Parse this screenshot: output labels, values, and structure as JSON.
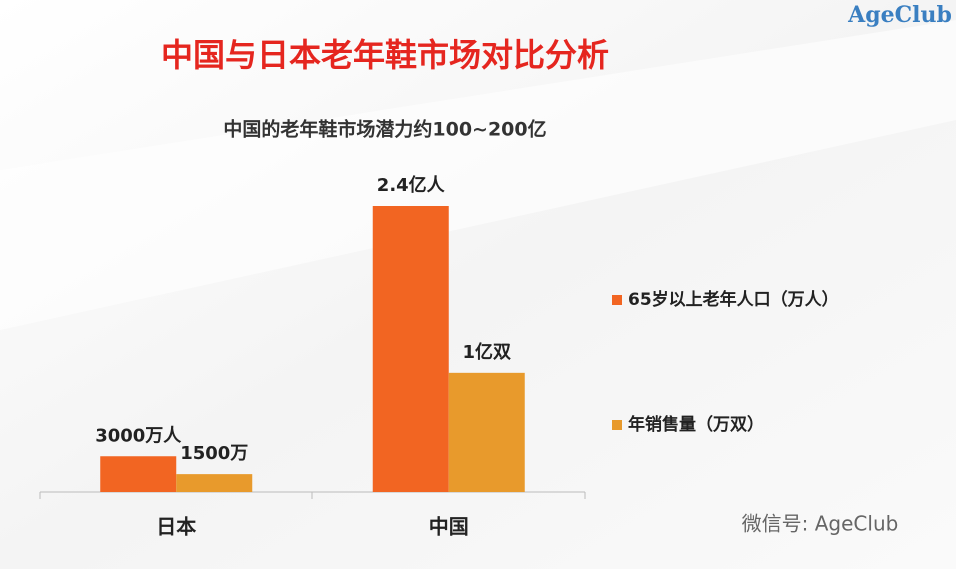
{
  "chart_data": {
    "type": "bar",
    "title": "中国与日本老年鞋市场对比分析",
    "subtitle": "中国的老年鞋市场潜力约100~200亿",
    "categories": [
      "日本",
      "中国"
    ],
    "series": [
      {
        "name": "65岁以上老年人口（万人）",
        "color": "#f26522",
        "values": [
          3000,
          24000
        ],
        "value_labels": [
          "3000万人",
          "2.4亿人"
        ]
      },
      {
        "name": "年销售量（万双）",
        "color": "#e89a2c",
        "values": [
          1500,
          10000
        ],
        "value_labels": [
          "1500万",
          "1亿双"
        ]
      }
    ],
    "legend": "right"
  },
  "logo": "AgeClub",
  "watermark": "微信号: AgeClub"
}
